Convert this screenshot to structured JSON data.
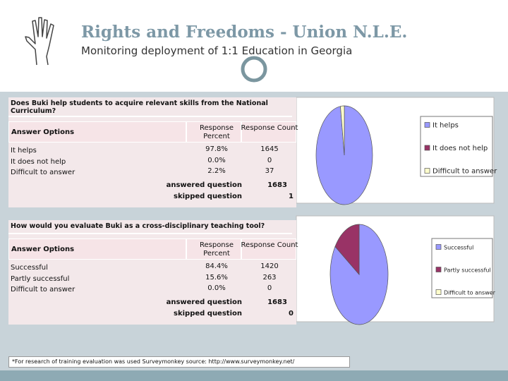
{
  "header": {
    "title": "Rights and Freedoms - Union N.L.E.",
    "subtitle": "Monitoring deployment of 1:1 Education in Georgia"
  },
  "chart_data": [
    {
      "type": "pie",
      "question": "Does Buki help students to acquire relevant skills from the National Curriculum?",
      "column_headers": [
        "Answer Options",
        "Response Percent",
        "Response Count"
      ],
      "categories": [
        "It helps",
        "It does not help",
        "Difficult to answer"
      ],
      "values": [
        97.8,
        0,
        2.2
      ],
      "value_labels": [
        "97.8%",
        "0.0%",
        "2.2%"
      ],
      "counts": [
        1645,
        0,
        37
      ],
      "colors": [
        "#9999ff",
        "#993366",
        "#ffffcc"
      ],
      "answered_label": "answered question",
      "answered": 1683,
      "skipped_label": "skipped question",
      "skipped": 1
    },
    {
      "type": "pie",
      "question": "How would you evaluate Buki as a cross-disciplinary teaching tool?",
      "column_headers": [
        "Answer Options",
        "Response Percent",
        "Response Count"
      ],
      "categories": [
        "Successful",
        "Partly successful",
        "Difficult to answer"
      ],
      "values": [
        84.4,
        15.6,
        0
      ],
      "value_labels": [
        "84.4%",
        "15.6%",
        "0.0%"
      ],
      "counts": [
        1420,
        263,
        0
      ],
      "colors": [
        "#9999ff",
        "#993366",
        "#ffffcc"
      ],
      "answered_label": "answered question",
      "answered": 1683,
      "skipped_label": "skipped question",
      "skipped": 0
    }
  ],
  "footnote": "*For research of training evaluation was used Surveymonkey source: http://www.surveymonkey.net/"
}
